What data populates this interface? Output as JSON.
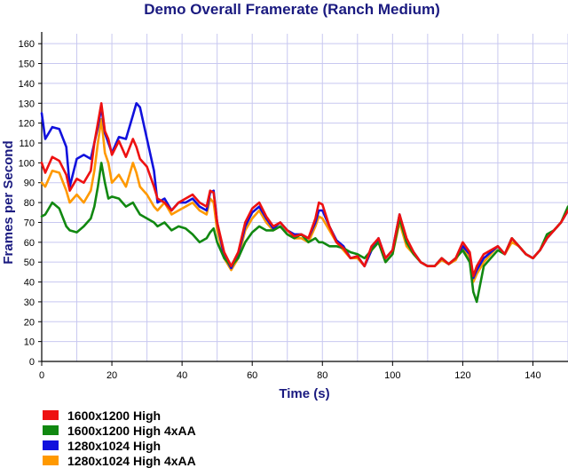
{
  "chart_data": {
    "type": "line",
    "title": "Demo Overall Framerate (Ranch Medium)",
    "xlabel": "Time (s)",
    "ylabel": "Frames per Second",
    "xlim": [
      0,
      150
    ],
    "ylim": [
      0,
      165
    ],
    "xticks": [
      0,
      20,
      40,
      60,
      80,
      100,
      120,
      140
    ],
    "yticks": [
      0,
      10,
      20,
      30,
      40,
      50,
      60,
      70,
      80,
      90,
      100,
      110,
      120,
      130,
      140,
      150,
      160
    ],
    "grid": true,
    "legend_position": "bottom-left",
    "series": [
      {
        "name": "1600x1200 High",
        "color": "#ee1111",
        "x": [
          0,
          1,
          3,
          5,
          7,
          8,
          10,
          12,
          14,
          15,
          16,
          17,
          18,
          19,
          20,
          22,
          24,
          26,
          27,
          28,
          30,
          32,
          33,
          35,
          37,
          39,
          41,
          43,
          45,
          47,
          48,
          49,
          50,
          52,
          54,
          56,
          58,
          60,
          62,
          64,
          66,
          68,
          70,
          72,
          74,
          76,
          78,
          79,
          80,
          82,
          84,
          86,
          88,
          90,
          92,
          94,
          96,
          98,
          100,
          102,
          104,
          106,
          108,
          110,
          112,
          114,
          116,
          118,
          120,
          122,
          123,
          124,
          126,
          128,
          130,
          132,
          134,
          136,
          138,
          140,
          142,
          144,
          146,
          148,
          150
        ],
        "y": [
          100,
          95,
          103,
          101,
          94,
          86,
          92,
          90,
          96,
          110,
          120,
          130,
          116,
          112,
          104,
          111,
          103,
          112,
          108,
          102,
          98,
          88,
          82,
          80,
          76,
          80,
          82,
          84,
          80,
          78,
          86,
          85,
          70,
          55,
          48,
          55,
          70,
          77,
          80,
          73,
          68,
          70,
          66,
          63,
          64,
          62,
          72,
          80,
          79,
          68,
          60,
          57,
          52,
          53,
          48,
          58,
          62,
          52,
          56,
          74,
          62,
          55,
          50,
          48,
          48,
          52,
          49,
          52,
          60,
          55,
          43,
          48,
          54,
          56,
          58,
          54,
          62,
          58,
          54,
          52,
          56,
          62,
          66,
          70,
          76
        ]
      },
      {
        "name": "1600x1200 High 4xAA",
        "color": "#118811",
        "x": [
          0,
          1,
          3,
          5,
          7,
          8,
          10,
          12,
          14,
          15,
          16,
          17,
          18,
          19,
          20,
          22,
          24,
          26,
          27,
          28,
          30,
          32,
          33,
          35,
          37,
          39,
          41,
          43,
          45,
          47,
          48,
          49,
          50,
          52,
          54,
          56,
          58,
          60,
          62,
          64,
          66,
          68,
          70,
          72,
          74,
          76,
          78,
          79,
          80,
          82,
          84,
          86,
          88,
          90,
          92,
          94,
          96,
          98,
          100,
          102,
          104,
          106,
          108,
          110,
          112,
          114,
          116,
          118,
          120,
          122,
          123,
          124,
          126,
          128,
          130,
          132,
          134,
          136,
          138,
          140,
          142,
          144,
          146,
          148,
          150
        ],
        "y": [
          73,
          74,
          80,
          77,
          68,
          66,
          65,
          68,
          72,
          78,
          88,
          100,
          90,
          82,
          83,
          82,
          78,
          80,
          77,
          74,
          72,
          70,
          68,
          70,
          66,
          68,
          67,
          64,
          60,
          62,
          65,
          67,
          60,
          52,
          48,
          52,
          60,
          65,
          68,
          66,
          66,
          68,
          64,
          62,
          64,
          60,
          62,
          60,
          60,
          58,
          58,
          57,
          55,
          54,
          52,
          56,
          60,
          50,
          54,
          72,
          60,
          54,
          50,
          48,
          48,
          52,
          49,
          52,
          56,
          50,
          35,
          30,
          48,
          52,
          56,
          54,
          62,
          58,
          54,
          52,
          56,
          64,
          66,
          70,
          78
        ]
      },
      {
        "name": "1280x1024 High",
        "color": "#1111dd",
        "x": [
          0,
          1,
          3,
          5,
          7,
          8,
          10,
          12,
          14,
          15,
          16,
          17,
          18,
          19,
          20,
          22,
          24,
          26,
          27,
          28,
          30,
          32,
          33,
          35,
          37,
          39,
          41,
          43,
          45,
          47,
          48,
          49,
          50,
          52,
          54,
          56,
          58,
          60,
          62,
          64,
          66,
          68,
          70,
          72,
          74,
          76,
          78,
          79,
          80,
          82,
          84,
          86,
          88,
          90,
          92,
          94,
          96,
          98,
          100,
          102,
          104,
          106,
          108,
          110,
          112,
          114,
          116,
          118,
          120,
          122,
          123,
          124,
          126,
          128,
          130,
          132,
          134,
          136,
          138,
          140,
          142,
          144,
          146,
          148,
          150
        ],
        "y": [
          125,
          112,
          118,
          117,
          108,
          88,
          102,
          104,
          102,
          110,
          118,
          128,
          115,
          110,
          105,
          113,
          112,
          124,
          130,
          128,
          112,
          96,
          80,
          82,
          76,
          80,
          80,
          82,
          78,
          76,
          85,
          86,
          70,
          53,
          47,
          54,
          68,
          75,
          78,
          72,
          67,
          70,
          66,
          64,
          64,
          62,
          70,
          76,
          76,
          68,
          61,
          58,
          52,
          53,
          48,
          56,
          62,
          52,
          56,
          74,
          60,
          55,
          50,
          48,
          48,
          52,
          49,
          52,
          58,
          54,
          42,
          46,
          52,
          55,
          58,
          54,
          62,
          58,
          54,
          52,
          56,
          62,
          66,
          70,
          76
        ]
      },
      {
        "name": "1280x1024 High 4xAA",
        "color": "#ff9900",
        "x": [
          0,
          1,
          3,
          5,
          7,
          8,
          10,
          12,
          14,
          15,
          16,
          17,
          18,
          19,
          20,
          22,
          24,
          26,
          27,
          28,
          30,
          32,
          33,
          35,
          37,
          39,
          41,
          43,
          45,
          47,
          48,
          49,
          50,
          52,
          54,
          56,
          58,
          60,
          62,
          64,
          66,
          68,
          70,
          72,
          74,
          76,
          78,
          79,
          80,
          82,
          84,
          86,
          88,
          90,
          92,
          94,
          96,
          98,
          100,
          102,
          104,
          106,
          108,
          110,
          112,
          114,
          116,
          118,
          120,
          122,
          123,
          124,
          126,
          128,
          130,
          132,
          134,
          136,
          138,
          140,
          142,
          144,
          146,
          148,
          150
        ],
        "y": [
          90,
          88,
          96,
          95,
          86,
          80,
          84,
          80,
          86,
          96,
          110,
          122,
          105,
          100,
          90,
          94,
          88,
          100,
          95,
          88,
          84,
          78,
          76,
          80,
          74,
          76,
          78,
          80,
          76,
          74,
          82,
          80,
          66,
          52,
          46,
          52,
          66,
          72,
          76,
          70,
          66,
          68,
          64,
          62,
          62,
          60,
          68,
          73,
          72,
          66,
          60,
          56,
          52,
          52,
          48,
          56,
          60,
          50,
          54,
          70,
          58,
          54,
          50,
          48,
          48,
          51,
          49,
          51,
          58,
          52,
          40,
          44,
          50,
          54,
          58,
          54,
          60,
          58,
          54,
          52,
          56,
          62,
          66,
          70,
          76
        ]
      }
    ]
  }
}
